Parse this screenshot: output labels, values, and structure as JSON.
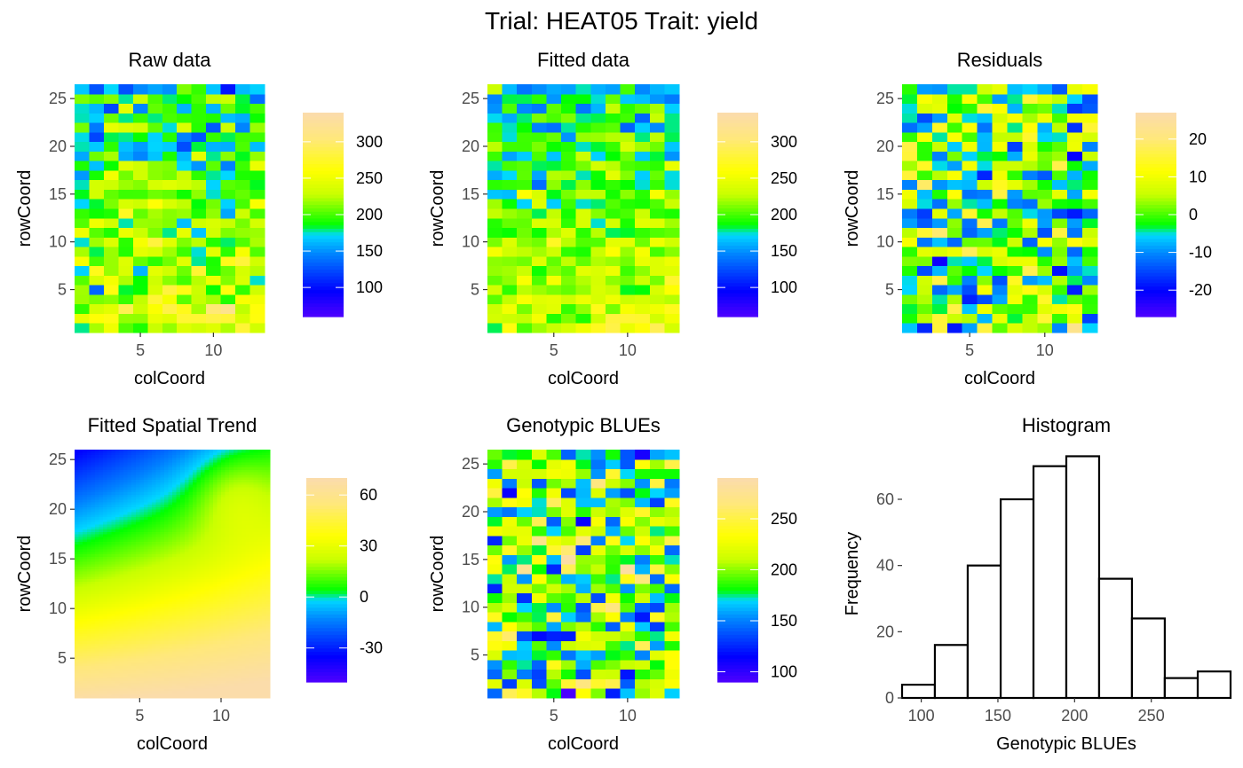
{
  "figure": {
    "title": "Trial: HEAT05 Trait: yield"
  },
  "chart_data": [
    {
      "type": "heatmap",
      "title": "Raw data",
      "xlabel": "colCoord",
      "ylabel": "rowCoord",
      "xlim": [
        0.5,
        13.5
      ],
      "ylim": [
        0.5,
        26.5
      ],
      "xticks": [
        5,
        10
      ],
      "yticks": [
        5,
        10,
        15,
        20,
        25
      ],
      "ncols": 13,
      "nrows": 26,
      "pattern": "trend",
      "base_mean": 200,
      "trend_amplitude": 65,
      "noise": 30,
      "seed": 11,
      "scale_range": [
        60,
        340
      ],
      "legend_ticks": [
        100,
        150,
        200,
        250,
        300
      ],
      "legend_position": "right",
      "grid": false
    },
    {
      "type": "heatmap",
      "title": "Fitted data",
      "xlabel": "colCoord",
      "ylabel": "rowCoord",
      "xlim": [
        0.5,
        13.5
      ],
      "ylim": [
        0.5,
        26.5
      ],
      "xticks": [
        5,
        10
      ],
      "yticks": [
        5,
        10,
        15,
        20,
        25
      ],
      "ncols": 13,
      "nrows": 26,
      "pattern": "trend",
      "base_mean": 200,
      "trend_amplitude": 65,
      "noise": 24,
      "seed": 12,
      "scale_range": [
        60,
        340
      ],
      "legend_ticks": [
        100,
        150,
        200,
        250,
        300
      ],
      "legend_position": "right",
      "grid": false
    },
    {
      "type": "heatmap",
      "title": "Residuals",
      "xlabel": "colCoord",
      "ylabel": "rowCoord",
      "xlim": [
        0.5,
        13.5
      ],
      "ylim": [
        0.5,
        26.5
      ],
      "xticks": [
        5,
        10
      ],
      "yticks": [
        5,
        10,
        15,
        20,
        25
      ],
      "ncols": 13,
      "nrows": 26,
      "pattern": "noise",
      "base_mean": 0,
      "trend_amplitude": 0,
      "noise": 9,
      "seed": 13,
      "scale_range": [
        -27,
        27
      ],
      "legend_ticks": [
        -20,
        -10,
        0,
        10,
        20
      ],
      "legend_position": "right",
      "grid": false
    },
    {
      "type": "heatmap",
      "title": "Fitted Spatial Trend",
      "xlabel": "colCoord",
      "ylabel": "rowCoord",
      "xlim": [
        1,
        13
      ],
      "ylim": [
        1,
        26
      ],
      "xticks": [
        5,
        10
      ],
      "yticks": [
        5,
        10,
        15,
        20,
        25
      ],
      "ncols": 13,
      "nrows": 26,
      "pattern": "smooth",
      "scale_range": [
        -50,
        70
      ],
      "legend_ticks": [
        -30,
        0,
        30,
        60
      ],
      "legend_position": "right",
      "grid": false
    },
    {
      "type": "heatmap",
      "title": "Genotypic BLUEs",
      "xlabel": "colCoord",
      "ylabel": "rowCoord",
      "xlim": [
        0.5,
        13.5
      ],
      "ylim": [
        0.5,
        26.5
      ],
      "xticks": [
        5,
        10
      ],
      "yticks": [
        5,
        10,
        15,
        20,
        25
      ],
      "ncols": 13,
      "nrows": 26,
      "pattern": "noise",
      "base_mean": 195,
      "trend_amplitude": 0,
      "noise": 38,
      "seed": 15,
      "scale_range": [
        90,
        290
      ],
      "legend_ticks": [
        100,
        150,
        200,
        250
      ],
      "legend_position": "right",
      "grid": false
    },
    {
      "type": "bar",
      "title": "Histogram",
      "xlabel": "Genotypic BLUEs",
      "ylabel": "Frequency",
      "bin_edges": [
        87.5,
        108.9,
        130.3,
        151.8,
        173.2,
        194.6,
        216.0,
        237.4,
        258.8,
        280.3,
        301.7
      ],
      "values": [
        4,
        16,
        40,
        60,
        70,
        73,
        36,
        24,
        6,
        8
      ],
      "xlim": [
        87.5,
        301.7
      ],
      "ylim": [
        0,
        75
      ],
      "xticks": [
        100,
        150,
        200,
        250
      ],
      "yticks": [
        0,
        20,
        40,
        60
      ],
      "grid": false
    }
  ],
  "colorscale": [
    "#4a00ff",
    "#0000ff",
    "#0080ff",
    "#00d8ff",
    "#00ff00",
    "#c8ff00",
    "#ffff00",
    "#ffe87a",
    "#fbdcaa"
  ],
  "colorscale_stops": [
    0,
    0.12,
    0.3,
    0.4,
    0.45,
    0.6,
    0.72,
    0.88,
    1
  ]
}
